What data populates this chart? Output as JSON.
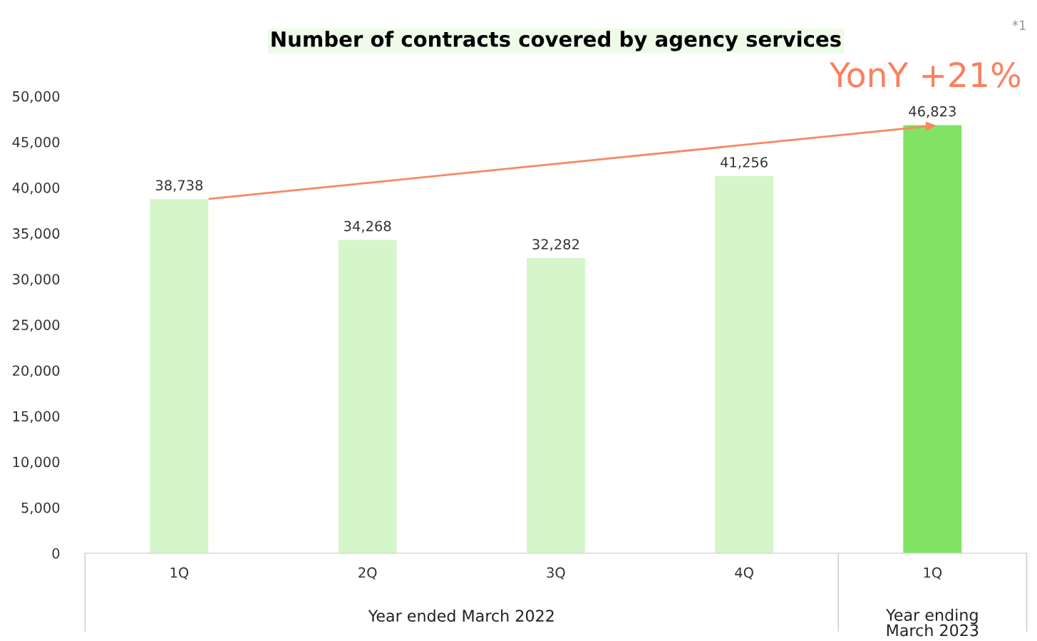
{
  "chart_data": {
    "type": "bar",
    "title": "Number of contracts covered by agency services",
    "categories": [
      "1Q",
      "2Q",
      "3Q",
      "4Q",
      "1Q"
    ],
    "values": [
      38738,
      34268,
      32282,
      41256,
      46823
    ],
    "colors": [
      "#d5f6c9",
      "#d5f6c9",
      "#d5f6c9",
      "#d5f6c9",
      "#80e462"
    ],
    "ylim": [
      0,
      50000
    ],
    "yticks": [
      0,
      {
        "value": 5000,
        "label": "5,000"
      },
      {
        "value": 10000,
        "label": "10,000"
      },
      {
        "value": 15000,
        "label": "15,000"
      },
      {
        "value": 20000,
        "label": "20,000"
      },
      {
        "value": 25000,
        "label": "25,000"
      },
      {
        "value": 30000,
        "label": "30,000"
      },
      {
        "value": 35000,
        "label": "35,000"
      },
      {
        "value": 40000,
        "label": "40,000"
      },
      {
        "value": 45000,
        "label": "45,000"
      },
      {
        "value": 50000,
        "label": "50,000"
      }
    ],
    "value_labels": [
      "38,738",
      "34,268",
      "32,282",
      "41,256",
      "46,823"
    ],
    "grid": false,
    "legend": false,
    "annotations": [
      "*1",
      "YonY +21%",
      "Year ended March 2022",
      "Year ending\nMarch 2023"
    ]
  }
}
